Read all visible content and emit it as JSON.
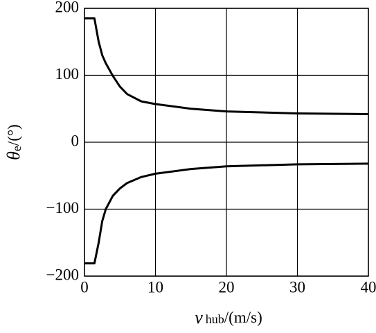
{
  "chart_data": {
    "type": "line",
    "x_label": [
      "v",
      "hub",
      "/(m/s)"
    ],
    "y_label": [
      "θ",
      "e",
      "/(°)"
    ],
    "x": [
      0,
      1.4,
      2,
      2.5,
      3,
      4,
      5,
      6,
      8,
      10,
      15,
      20,
      30,
      40
    ],
    "series": [
      {
        "color": "#000000",
        "values": [
          185,
          185,
          150,
          130,
          118,
          99,
          83,
          72,
          61,
          57,
          50,
          46,
          43,
          42
        ]
      },
      {
        "color": "#000000",
        "values": [
          -181,
          -181,
          -150,
          -118,
          -100,
          -80,
          -69,
          -61,
          -52,
          -47,
          -40,
          -36,
          -33,
          -32
        ]
      }
    ],
    "xlim": [
      0,
      40
    ],
    "xticks": [
      0,
      10,
      20,
      30,
      40
    ],
    "ylim": [
      -200,
      200
    ],
    "yticks": [
      {
        "value": -200,
        "label": "−200"
      },
      {
        "value": -100,
        "label": "−100"
      },
      0,
      100,
      200
    ],
    "grid": true
  }
}
